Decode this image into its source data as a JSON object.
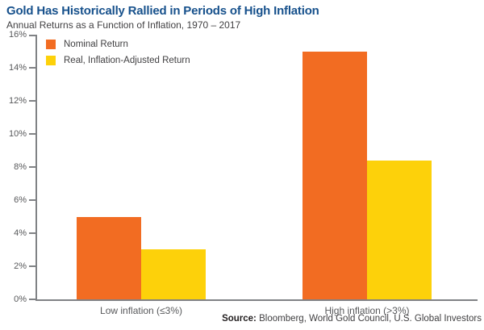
{
  "header": {
    "title": "Gold Has Historically Rallied in Periods of High Inflation",
    "subtitle": "Annual Returns as a Function of Inflation, 1970 – 2017"
  },
  "source": {
    "prefix": "Source:",
    "text": "Bloomberg, World Gold Council, U.S. Global Investors"
  },
  "colors": {
    "title_blue": "#17518C",
    "axis_gray": "#808285",
    "text_gray": "#58595B",
    "nominal_orange": "#F26C22",
    "real_yellow": "#FDD10A"
  },
  "chart_data": {
    "type": "bar",
    "title": "Gold Has Historically Rallied in Periods of High Inflation",
    "subtitle": "Annual Returns as a Function of Inflation, 1970 – 2017",
    "categories": [
      "Low inflation (≤3%)",
      "High inflation (>3%)"
    ],
    "series": [
      {
        "name": "Nominal Return",
        "color": "#F26C22",
        "values": [
          5.0,
          15.0
        ]
      },
      {
        "name": "Real, Inflation-Adjusted Return",
        "color": "#FDD10A",
        "values": [
          3.05,
          8.4
        ]
      }
    ],
    "xlabel": "",
    "ylabel": "",
    "ylim": [
      0,
      16
    ],
    "ytick_step": 2,
    "ytick_suffix": "%",
    "grid": false,
    "legend_position": "top-left"
  }
}
